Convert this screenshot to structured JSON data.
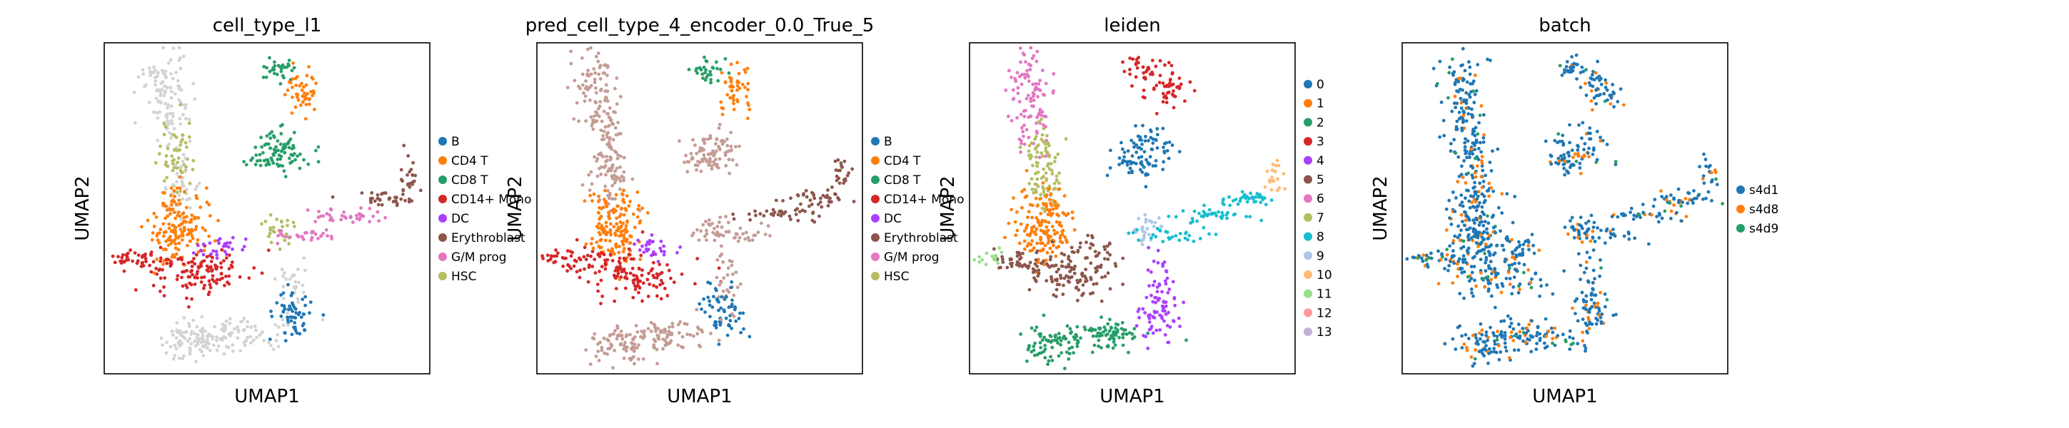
{
  "chart_data": [
    {
      "type": "scatter",
      "title": "cell_type_l1",
      "xlabel": "UMAP1",
      "ylabel": "UMAP2",
      "legend_position": "right",
      "legend": [
        {
          "label": "B",
          "color": "#1f77b4"
        },
        {
          "label": "CD4 T",
          "color": "#ff7f0e"
        },
        {
          "label": "CD8 T",
          "color": "#279e68"
        },
        {
          "label": "CD14+ Mono",
          "color": "#d62728"
        },
        {
          "label": "DC",
          "color": "#aa40fc"
        },
        {
          "label": "Erythroblast",
          "color": "#8c564b"
        },
        {
          "label": "G/M prog",
          "color": "#e377c2"
        },
        {
          "label": "HSC",
          "color": "#b5bd61"
        }
      ],
      "other_color": "#d3d3d3"
    },
    {
      "type": "scatter",
      "title": "pred_cell_type_4_encoder_0.0_True_5",
      "xlabel": "UMAP1",
      "ylabel": "UMAP2",
      "legend_position": "right",
      "legend": [
        {
          "label": "B",
          "color": "#1f77b4"
        },
        {
          "label": "CD4 T",
          "color": "#ff7f0e"
        },
        {
          "label": "CD8 T",
          "color": "#279e68"
        },
        {
          "label": "CD14+ Mono",
          "color": "#d62728"
        },
        {
          "label": "DC",
          "color": "#aa40fc"
        },
        {
          "label": "Erythroblast",
          "color": "#8c564b"
        },
        {
          "label": "G/M prog",
          "color": "#e377c2"
        },
        {
          "label": "HSC",
          "color": "#b5bd61"
        }
      ],
      "other_color": "#c49c94"
    },
    {
      "type": "scatter",
      "title": "leiden",
      "xlabel": "UMAP1",
      "ylabel": "UMAP2",
      "legend_position": "right",
      "legend": [
        {
          "label": "0",
          "color": "#1f77b4"
        },
        {
          "label": "1",
          "color": "#ff7f0e"
        },
        {
          "label": "2",
          "color": "#279e68"
        },
        {
          "label": "3",
          "color": "#d62728"
        },
        {
          "label": "4",
          "color": "#aa40fc"
        },
        {
          "label": "5",
          "color": "#8c564b"
        },
        {
          "label": "6",
          "color": "#e377c2"
        },
        {
          "label": "7",
          "color": "#b5bd61"
        },
        {
          "label": "8",
          "color": "#17becf"
        },
        {
          "label": "9",
          "color": "#aec7e8"
        },
        {
          "label": "10",
          "color": "#ffbb78"
        },
        {
          "label": "11",
          "color": "#98df8a"
        },
        {
          "label": "12",
          "color": "#ff9896"
        },
        {
          "label": "13",
          "color": "#c5b0d5"
        }
      ]
    },
    {
      "type": "scatter",
      "title": "batch",
      "xlabel": "UMAP1",
      "ylabel": "UMAP2",
      "legend_position": "right",
      "legend": [
        {
          "label": "s4d1",
          "color": "#1f77b4"
        },
        {
          "label": "s4d8",
          "color": "#ff7f0e"
        },
        {
          "label": "s4d9",
          "color": "#279e68"
        }
      ]
    }
  ]
}
